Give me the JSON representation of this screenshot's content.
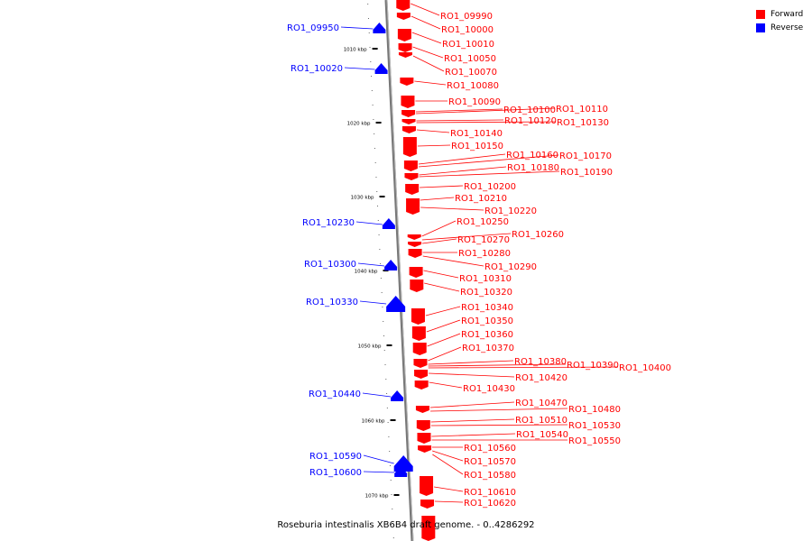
{
  "caption": "Roseburia intestinalis XB6B4 draft genome. - 0..4286292",
  "legend": [
    {
      "label": "Forward",
      "color": "#ff0000"
    },
    {
      "label": "Reverse",
      "color": "#0000ff"
    }
  ],
  "colors": {
    "forward": "#ff0000",
    "reverse": "#0000ff",
    "axis": "#888888"
  },
  "axis": {
    "ticks": [
      {
        "label": "1010 kbp",
        "kbp": 1010
      },
      {
        "label": "1020 kbp",
        "kbp": 1020
      },
      {
        "label": "1030 kbp",
        "kbp": 1030
      },
      {
        "label": "1040 kbp",
        "kbp": 1040
      },
      {
        "label": "1050 kbp",
        "kbp": 1050
      },
      {
        "label": "1060 kbp",
        "kbp": 1060
      },
      {
        "label": "1070 kbp",
        "kbp": 1070
      }
    ]
  },
  "reverse_genes": [
    "RO1_09950",
    "RO1_10020",
    "RO1_10230",
    "RO1_10300",
    "RO1_10330",
    "RO1_10440",
    "RO1_10590",
    "RO1_10600"
  ],
  "forward_genes": [
    "RO1_09990",
    "RO1_10000",
    "RO1_10010",
    "RO1_10050",
    "RO1_10070",
    "RO1_10080",
    "RO1_10090",
    "RO1_10100",
    "RO1_10110",
    "RO1_10120",
    "RO1_10130",
    "RO1_10140",
    "RO1_10150",
    "RO1_10160",
    "RO1_10170",
    "RO1_10180",
    "RO1_10190",
    "RO1_10200",
    "RO1_10210",
    "RO1_10220",
    "RO1_10250",
    "RO1_10260",
    "RO1_10270",
    "RO1_10280",
    "RO1_10290",
    "RO1_10310",
    "RO1_10320",
    "RO1_10340",
    "RO1_10350",
    "RO1_10360",
    "RO1_10370",
    "RO1_10380",
    "RO1_10390",
    "RO1_10400",
    "RO1_10420",
    "RO1_10430",
    "RO1_10470",
    "RO1_10480",
    "RO1_10510",
    "RO1_10530",
    "RO1_10540",
    "RO1_10550",
    "RO1_10560",
    "RO1_10570",
    "RO1_10580",
    "RO1_10610",
    "RO1_10620"
  ]
}
